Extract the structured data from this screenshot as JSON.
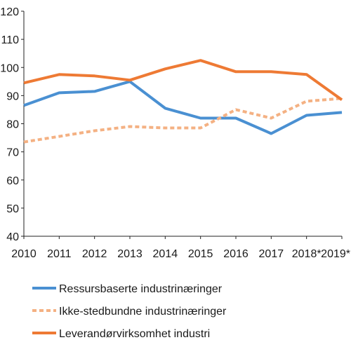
{
  "chart_data": {
    "type": "line",
    "categories": [
      "2010",
      "2011",
      "2012",
      "2013",
      "2014",
      "2015",
      "2016",
      "2017",
      "2018*",
      "2019*"
    ],
    "ylim": [
      40,
      120
    ],
    "yticks": [
      40,
      50,
      60,
      70,
      80,
      90,
      100,
      110,
      120
    ],
    "grid": false,
    "legend_position": "bottom",
    "series": [
      {
        "name": "Ressursbaserte industrinæringer",
        "color": "#4a90d2",
        "dashed": false,
        "values": [
          86.5,
          91,
          91.5,
          95,
          85.5,
          82,
          82,
          76.5,
          83,
          84
        ]
      },
      {
        "name": "Ikke-stedbundne industrinæringer",
        "color": "#f4b183",
        "dashed": true,
        "values": [
          73.5,
          75.5,
          77.5,
          79,
          78.5,
          78.5,
          85,
          82,
          88,
          89
        ]
      },
      {
        "name": "Leverandørvirksomhet industri",
        "color": "#ee7a34",
        "dashed": false,
        "values": [
          94.5,
          97.5,
          97,
          95.5,
          99.5,
          102.5,
          98.5,
          98.5,
          97.5,
          88.5
        ]
      }
    ]
  }
}
